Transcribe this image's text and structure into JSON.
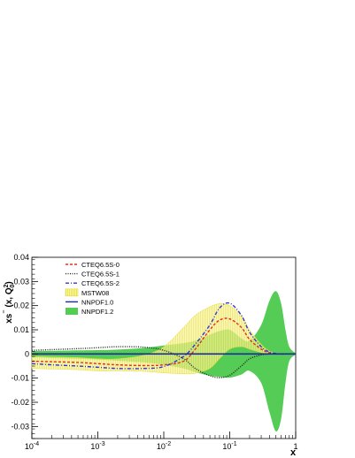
{
  "chart_data": {
    "type": "line",
    "title": "",
    "xlabel": "x",
    "ylabel_parts": [
      "xs",
      "⁻",
      " (x, Q",
      "2",
      "0",
      ")"
    ],
    "x_scale": "log",
    "xlim": [
      0.0001,
      1
    ],
    "ylim": [
      -0.035,
      0.04
    ],
    "x_ticks": [
      {
        "value": 0.0001,
        "base": "10",
        "exp": "-4"
      },
      {
        "value": 0.001,
        "base": "10",
        "exp": "-3"
      },
      {
        "value": 0.01,
        "base": "10",
        "exp": "-2"
      },
      {
        "value": 0.1,
        "base": "10",
        "exp": "-1"
      },
      {
        "value": 1,
        "base": "1",
        "exp": ""
      }
    ],
    "y_ticks": [
      {
        "value": 0.04,
        "label": "0.04"
      },
      {
        "value": 0.03,
        "label": "0.03"
      },
      {
        "value": 0.02,
        "label": "0.02"
      },
      {
        "value": 0.01,
        "label": "0.01"
      },
      {
        "value": 0,
        "label": "0"
      },
      {
        "value": -0.01,
        "label": "-0.01"
      },
      {
        "value": -0.02,
        "label": "-0.02"
      },
      {
        "value": -0.03,
        "label": "-0.03"
      }
    ],
    "x": [
      0.0001,
      0.0002,
      0.0005,
      0.001,
      0.002,
      0.005,
      0.01,
      0.02,
      0.03,
      0.05,
      0.07,
      0.1,
      0.15,
      0.2,
      0.3,
      0.4,
      0.5,
      0.6,
      0.7,
      0.8,
      1.0
    ],
    "legend_position": "top-left",
    "series": [
      {
        "name": "CTEQ6.5S-0",
        "kind": "line",
        "color": "#e03020",
        "dash": "3,2",
        "values": [
          -0.003,
          -0.0032,
          -0.0035,
          -0.004,
          -0.0045,
          -0.0048,
          -0.0045,
          -0.003,
          0.002,
          0.01,
          0.014,
          0.0145,
          0.011,
          0.006,
          0.002,
          0.0005,
          0.0001,
          0,
          0,
          0,
          0
        ]
      },
      {
        "name": "CTEQ6.5S-1",
        "kind": "line",
        "color": "#222222",
        "dash": "1,1.5",
        "values": [
          0.0015,
          0.0018,
          0.0022,
          0.0026,
          0.003,
          0.0028,
          0.0015,
          -0.002,
          -0.006,
          -0.009,
          -0.0098,
          -0.0088,
          -0.005,
          -0.002,
          -0.0004,
          0,
          0,
          0,
          0,
          0,
          0
        ]
      },
      {
        "name": "CTEQ6.5S-2",
        "kind": "line",
        "color": "#3333dd",
        "dash": "4,2,1,2",
        "values": [
          -0.004,
          -0.0045,
          -0.005,
          -0.0055,
          -0.006,
          -0.006,
          -0.0052,
          -0.001,
          0.004,
          0.012,
          0.019,
          0.021,
          0.016,
          0.009,
          0.003,
          0.0008,
          0.0002,
          0,
          0,
          0,
          0
        ]
      },
      {
        "name": "MSTW08",
        "kind": "band",
        "color": "#f4ee60",
        "upper": [
          -0.001,
          -0.0012,
          -0.0015,
          -0.002,
          -0.002,
          -0.0005,
          0.003,
          0.011,
          0.016,
          0.0195,
          0.0208,
          0.02,
          0.016,
          0.01,
          0.004,
          0.0012,
          0.0003,
          0.0001,
          0,
          0,
          0
        ],
        "lower": [
          -0.006,
          -0.0062,
          -0.0065,
          -0.007,
          -0.007,
          -0.0072,
          -0.0078,
          -0.0082,
          -0.008,
          -0.006,
          -0.002,
          0.002,
          0.003,
          0.002,
          0.0006,
          0.0001,
          0,
          0,
          0,
          0,
          0
        ]
      },
      {
        "name": "NNPDF1.0",
        "kind": "line",
        "color": "#1a2a9a",
        "dash": "",
        "values": [
          0,
          0,
          0,
          0,
          0,
          0,
          0,
          0,
          0,
          0,
          0,
          0,
          0,
          0,
          0,
          0,
          0,
          0,
          0,
          0,
          0
        ]
      },
      {
        "name": "NNPDF1.2",
        "kind": "band",
        "color": "#55cc55",
        "upper": [
          0.0012,
          0.0013,
          0.0015,
          0.0016,
          0.0018,
          0.0025,
          0.0035,
          0.0045,
          0.0055,
          0.008,
          0.0095,
          0.01,
          0.0065,
          0.0055,
          0.012,
          0.022,
          0.026,
          0.021,
          0.01,
          0.003,
          0.0003
        ],
        "lower": [
          -0.0015,
          -0.0017,
          -0.002,
          -0.0023,
          -0.0028,
          -0.0035,
          -0.0045,
          -0.006,
          -0.0075,
          -0.009,
          -0.0095,
          -0.0098,
          -0.0085,
          -0.007,
          -0.012,
          -0.024,
          -0.032,
          -0.027,
          -0.012,
          -0.003,
          -0.0003
        ]
      }
    ]
  }
}
